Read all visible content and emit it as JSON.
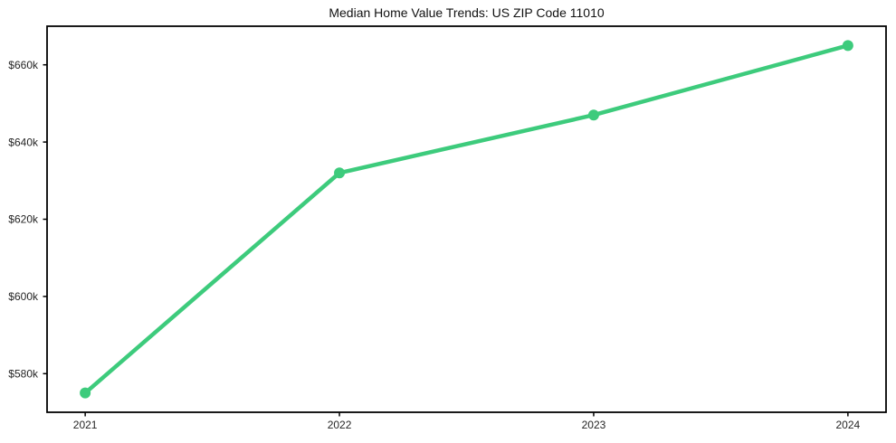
{
  "chart_data": {
    "type": "line",
    "title": "Median Home Value Trends: US ZIP Code 11010",
    "x": [
      2021,
      2022,
      2023,
      2024
    ],
    "x_tick_labels": [
      "2021",
      "2022",
      "2023",
      "2024"
    ],
    "values": [
      575000,
      632000,
      647000,
      665000
    ],
    "y_ticks": [
      580000,
      600000,
      620000,
      640000,
      660000
    ],
    "y_tick_labels": [
      "$580k",
      "$600k",
      "$620k",
      "$640k",
      "$660k"
    ],
    "xlabel": "",
    "ylabel": "",
    "xlim": [
      2020.85,
      2024.15
    ],
    "ylim": [
      570000,
      670000
    ],
    "grid": false,
    "legend": "none",
    "colors": {
      "line": "#3dcb7c",
      "marker": "#3dcb7c",
      "axis": "#000000",
      "tick_label": "#262626",
      "title": "#111111",
      "background": "#ffffff"
    }
  }
}
